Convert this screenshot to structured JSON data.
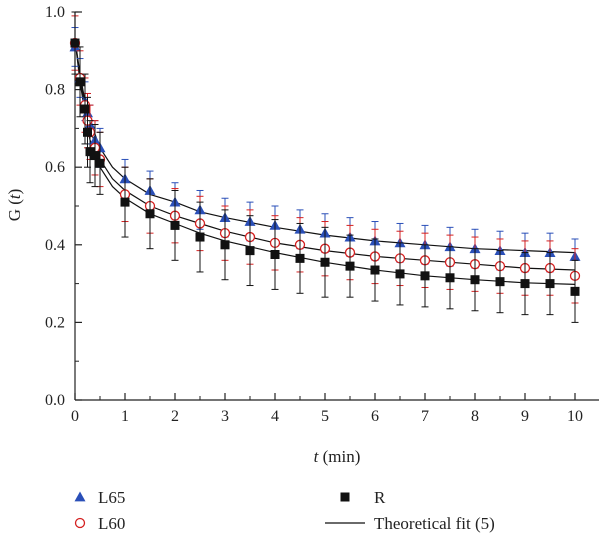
{
  "chart_data": {
    "type": "scatter",
    "xlabel_symbol": "t",
    "xlabel_unit": " (min)",
    "ylabel_main": "G (",
    "ylabel_symbol": "t",
    "ylabel_close": ")",
    "xlim": [
      0,
      10.5
    ],
    "ylim": [
      0,
      1.0
    ],
    "xticks": [
      "0",
      "1",
      "2",
      "3",
      "4",
      "5",
      "6",
      "7",
      "8",
      "9",
      "10"
    ],
    "yticks": [
      "0.0",
      "0.2",
      "0.4",
      "0.6",
      "0.8",
      "1.0"
    ],
    "grid": false,
    "legend_position": "bottom",
    "x": [
      0,
      0.1,
      0.2,
      0.25,
      0.3,
      0.4,
      0.5,
      1,
      1.5,
      2,
      2.5,
      3,
      3.5,
      4,
      4.5,
      5,
      5.5,
      6,
      6.5,
      7,
      7.5,
      8,
      8.5,
      9,
      9.5,
      10
    ],
    "series": [
      {
        "name": "L65",
        "marker": "triangle",
        "color": "#2a4fb8",
        "error_color": "#2a4fb8",
        "values": [
          0.91,
          0.83,
          0.77,
          0.74,
          0.71,
          0.67,
          0.65,
          0.57,
          0.54,
          0.51,
          0.49,
          0.47,
          0.46,
          0.45,
          0.44,
          0.43,
          0.42,
          0.41,
          0.405,
          0.4,
          0.395,
          0.39,
          0.385,
          0.38,
          0.38,
          0.37
        ],
        "errors": [
          0.05,
          0.05,
          0.05,
          0.05,
          0.05,
          0.05,
          0.05,
          0.05,
          0.05,
          0.05,
          0.05,
          0.05,
          0.05,
          0.05,
          0.05,
          0.05,
          0.05,
          0.05,
          0.05,
          0.05,
          0.05,
          0.05,
          0.05,
          0.05,
          0.05,
          0.045
        ]
      },
      {
        "name": "L60",
        "marker": "circle",
        "color": "#d42020",
        "error_color": "#d42020",
        "values": [
          0.92,
          0.83,
          0.76,
          0.72,
          0.69,
          0.65,
          0.62,
          0.53,
          0.5,
          0.475,
          0.455,
          0.43,
          0.42,
          0.405,
          0.4,
          0.39,
          0.38,
          0.37,
          0.365,
          0.36,
          0.355,
          0.35,
          0.345,
          0.34,
          0.34,
          0.32
        ],
        "errors": [
          0.07,
          0.07,
          0.07,
          0.07,
          0.07,
          0.07,
          0.07,
          0.07,
          0.07,
          0.07,
          0.07,
          0.07,
          0.07,
          0.07,
          0.07,
          0.07,
          0.07,
          0.07,
          0.07,
          0.07,
          0.07,
          0.07,
          0.07,
          0.07,
          0.07,
          0.07
        ]
      },
      {
        "name": "R",
        "marker": "square",
        "color": "#111111",
        "error_color": "#111111",
        "values": [
          0.92,
          0.82,
          0.75,
          0.69,
          0.64,
          0.63,
          0.61,
          0.51,
          0.48,
          0.45,
          0.42,
          0.4,
          0.385,
          0.375,
          0.365,
          0.355,
          0.345,
          0.335,
          0.325,
          0.32,
          0.315,
          0.31,
          0.305,
          0.3,
          0.3,
          0.28
        ],
        "errors": [
          0.08,
          0.09,
          0.09,
          0.09,
          0.08,
          0.08,
          0.08,
          0.09,
          0.09,
          0.09,
          0.09,
          0.09,
          0.09,
          0.09,
          0.09,
          0.09,
          0.08,
          0.08,
          0.08,
          0.08,
          0.08,
          0.08,
          0.08,
          0.08,
          0.08,
          0.08
        ]
      }
    ],
    "fits": [
      {
        "for": "L65",
        "x": [
          0,
          0.1,
          0.2,
          0.3,
          0.5,
          0.75,
          1,
          1.5,
          2,
          2.5,
          3,
          4,
          5,
          6,
          7,
          8,
          9,
          10
        ],
        "values": [
          0.93,
          0.84,
          0.77,
          0.72,
          0.65,
          0.6,
          0.57,
          0.53,
          0.51,
          0.485,
          0.47,
          0.445,
          0.425,
          0.41,
          0.4,
          0.39,
          0.385,
          0.38
        ]
      },
      {
        "for": "L60",
        "x": [
          0,
          0.1,
          0.2,
          0.3,
          0.5,
          0.75,
          1,
          1.5,
          2,
          2.5,
          3,
          4,
          5,
          6,
          7,
          8,
          9,
          10
        ],
        "values": [
          0.93,
          0.83,
          0.76,
          0.7,
          0.62,
          0.57,
          0.54,
          0.5,
          0.475,
          0.455,
          0.435,
          0.405,
          0.385,
          0.37,
          0.36,
          0.35,
          0.34,
          0.335
        ]
      },
      {
        "for": "R",
        "x": [
          0,
          0.1,
          0.2,
          0.3,
          0.5,
          0.75,
          1,
          1.5,
          2,
          2.5,
          3,
          4,
          5,
          6,
          7,
          8,
          9,
          10
        ],
        "values": [
          0.93,
          0.82,
          0.74,
          0.67,
          0.6,
          0.55,
          0.52,
          0.48,
          0.455,
          0.43,
          0.41,
          0.38,
          0.355,
          0.335,
          0.32,
          0.31,
          0.302,
          0.298
        ]
      }
    ],
    "legend": [
      {
        "label": "L65",
        "marker": "triangle",
        "color": "#2a4fb8"
      },
      {
        "label": "L60",
        "marker": "circle",
        "color": "#d42020"
      },
      {
        "label": "R",
        "marker": "square",
        "color": "#111111"
      },
      {
        "label": "Theoretical fit (5)",
        "marker": "line",
        "color": "#111111"
      }
    ]
  }
}
